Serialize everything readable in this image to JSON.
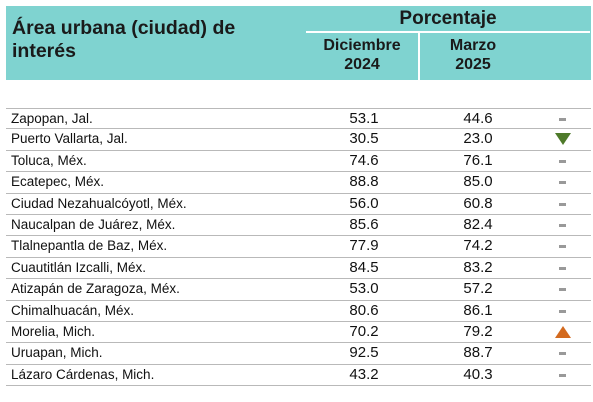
{
  "header": {
    "area_title": "Área urbana (ciudad) de interés",
    "group_title": "Porcentaje",
    "col1_line1": "Diciembre",
    "col1_line2": "2024",
    "col2_line1": "Marzo",
    "col2_line2": "2025"
  },
  "colors": {
    "header_bg": "#7fd3d0",
    "trend_up": "#d36a1f",
    "trend_down": "#4e7a2a",
    "trend_equal": "#999999"
  },
  "rows": [
    {
      "city": "Zapopan, Jal.",
      "dec_2024": "53.1",
      "mar_2025": "44.6",
      "trend": "equal"
    },
    {
      "city": "Puerto Vallarta, Jal.",
      "dec_2024": "30.5",
      "mar_2025": "23.0",
      "trend": "down"
    },
    {
      "city": "Toluca, Méx.",
      "dec_2024": "74.6",
      "mar_2025": "76.1",
      "trend": "equal"
    },
    {
      "city": "Ecatepec, Méx.",
      "dec_2024": "88.8",
      "mar_2025": "85.0",
      "trend": "equal"
    },
    {
      "city": "Ciudad Nezahualcóyotl, Méx.",
      "dec_2024": "56.0",
      "mar_2025": "60.8",
      "trend": "equal"
    },
    {
      "city": "Naucalpan de Juárez, Méx.",
      "dec_2024": "85.6",
      "mar_2025": "82.4",
      "trend": "equal"
    },
    {
      "city": "Tlalnepantla de Baz, Méx.",
      "dec_2024": "77.9",
      "mar_2025": "74.2",
      "trend": "equal"
    },
    {
      "city": "Cuautitlán Izcalli, Méx.",
      "dec_2024": "84.5",
      "mar_2025": "83.2",
      "trend": "equal"
    },
    {
      "city": "Atizapán de Zaragoza, Méx.",
      "dec_2024": "53.0",
      "mar_2025": "57.2",
      "trend": "equal"
    },
    {
      "city": "Chimalhuacán, Méx.",
      "dec_2024": "80.6",
      "mar_2025": "86.1",
      "trend": "equal"
    },
    {
      "city": "Morelia, Mich.",
      "dec_2024": "70.2",
      "mar_2025": "79.2",
      "trend": "up"
    },
    {
      "city": "Uruapan, Mich.",
      "dec_2024": "92.5",
      "mar_2025": "88.7",
      "trend": "equal"
    },
    {
      "city": "Lázaro Cárdenas, Mich.",
      "dec_2024": "43.2",
      "mar_2025": "40.3",
      "trend": "equal"
    }
  ]
}
